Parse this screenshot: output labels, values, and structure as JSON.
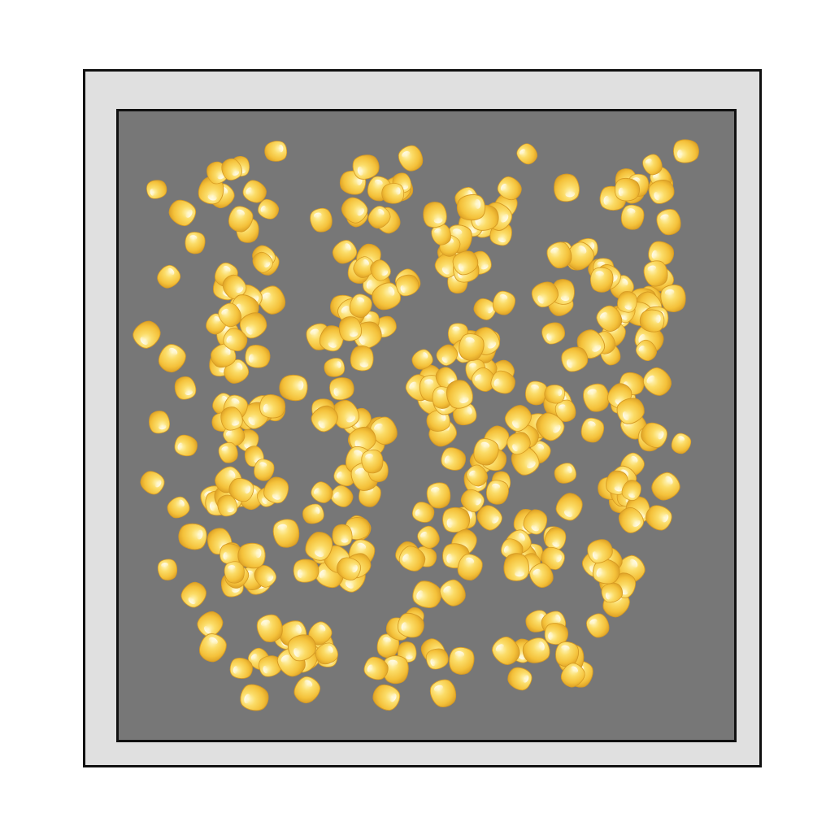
{
  "scene": {
    "description_colors": {
      "background": "#ffffff",
      "frame": "#e0e0e0",
      "tray": "#777777",
      "border": "#111111",
      "kernel_light": "#fff3a8",
      "kernel_mid": "#f9cf4a",
      "kernel_dark": "#e2a524"
    }
  }
}
